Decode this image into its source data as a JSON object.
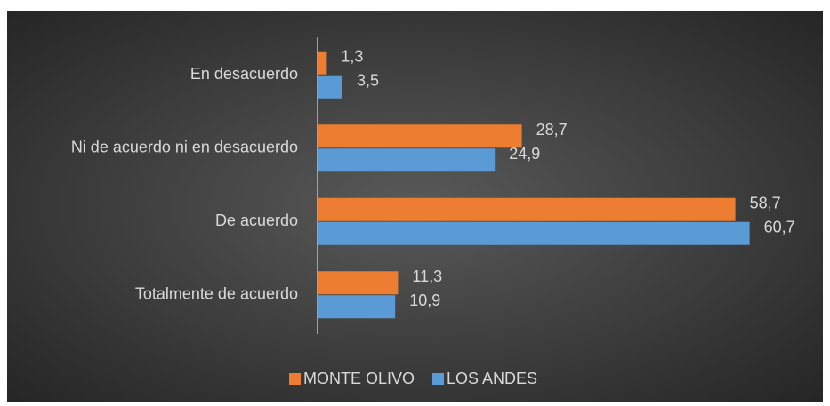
{
  "chart_data": {
    "type": "hbar",
    "categories": [
      "En desacuerdo",
      "Ni de acuerdo ni en desacuerdo",
      "De acuerdo",
      "Totalmente de acuerdo"
    ],
    "series": [
      {
        "name": "MONTE OLIVO",
        "color": "#ed7d31",
        "values": [
          1.3,
          28.7,
          58.7,
          11.3
        ],
        "value_labels": [
          "1,3",
          "28,7",
          "58,7",
          "11,3"
        ]
      },
      {
        "name": "LOS ANDES",
        "color": "#5b9bd5",
        "values": [
          3.5,
          24.9,
          60.7,
          10.9
        ],
        "value_labels": [
          "3,5",
          "24,9",
          "60,7",
          "10,9"
        ]
      }
    ],
    "xlim": [
      0,
      70
    ],
    "legend": "bottom"
  }
}
